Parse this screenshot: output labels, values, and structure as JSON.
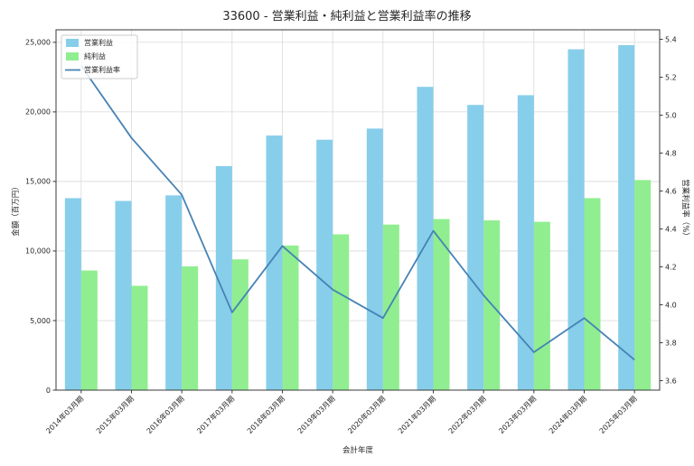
{
  "chart_data": {
    "type": "bar+line",
    "title": "33600 - 営業利益・純利益と営業利益率の推移",
    "xlabel": "会計年度",
    "ylabel_left": "金額（百万円）",
    "ylabel_right": "営業利益率（%）",
    "categories": [
      "2014年03月期",
      "2015年03月期",
      "2016年03月期",
      "2017年03月期",
      "2018年03月期",
      "2019年03月期",
      "2020年03月期",
      "2021年03月期",
      "2022年03月期",
      "2023年03月期",
      "2024年03月期",
      "2025年03月期"
    ],
    "series": [
      {
        "name": "営業利益",
        "type": "bar",
        "axis": "left",
        "color": "#87CEEB",
        "values": [
          13800,
          13600,
          14000,
          16100,
          18300,
          18000,
          18800,
          21800,
          20500,
          21200,
          24500,
          24800
        ]
      },
      {
        "name": "純利益",
        "type": "bar",
        "axis": "left",
        "color": "#90EE90",
        "values": [
          8600,
          7500,
          8900,
          9400,
          10400,
          11200,
          11900,
          12300,
          12200,
          12100,
          13800,
          15100
        ]
      },
      {
        "name": "営業利益率",
        "type": "line",
        "axis": "right",
        "color": "#4682B4",
        "values": [
          5.26,
          4.88,
          4.58,
          3.96,
          4.31,
          4.08,
          3.93,
          4.39,
          4.05,
          3.75,
          3.93,
          3.71
        ]
      }
    ],
    "ylim_left": [
      0,
      25900
    ],
    "ylim_right": [
      3.55,
      5.45
    ],
    "yticks_left": [
      0,
      5000,
      10000,
      15000,
      20000,
      25000
    ],
    "ytick_labels_left": [
      "0",
      "5,000",
      "10,000",
      "15,000",
      "20,000",
      "25,000"
    ],
    "yticks_right": [
      3.6,
      3.8,
      4.0,
      4.2,
      4.4,
      4.6,
      4.8,
      5.0,
      5.2,
      5.4
    ],
    "ytick_labels_right": [
      "3.6",
      "3.8",
      "4.0",
      "4.2",
      "4.4",
      "4.6",
      "4.8",
      "5.0",
      "5.2",
      "5.4"
    ],
    "grid": true,
    "grid_color": "#d9d9d9",
    "spine_color": "#3a3a3a",
    "legend_position": "upper left"
  }
}
